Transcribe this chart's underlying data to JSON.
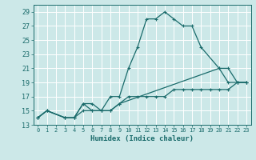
{
  "xlabel": "Humidex (Indice chaleur)",
  "background_color": "#cce8e8",
  "grid_color": "#ffffff",
  "line_color": "#1a6b6b",
  "xlim": [
    -0.5,
    23.5
  ],
  "ylim": [
    13,
    30
  ],
  "xticks": [
    0,
    1,
    2,
    3,
    4,
    5,
    6,
    7,
    8,
    9,
    10,
    11,
    12,
    13,
    14,
    15,
    16,
    17,
    18,
    19,
    20,
    21,
    22,
    23
  ],
  "yticks": [
    13,
    15,
    17,
    19,
    21,
    23,
    25,
    27,
    29
  ],
  "series": [
    {
      "x": [
        0,
        1,
        3,
        4,
        5,
        6,
        7,
        8,
        9,
        10,
        11,
        12,
        13,
        14,
        15,
        16,
        17,
        18,
        20,
        21,
        22,
        23
      ],
      "y": [
        14,
        15,
        14,
        14,
        16,
        16,
        15,
        17,
        17,
        21,
        24,
        28,
        28,
        29,
        28,
        27,
        27,
        24,
        21,
        19,
        19,
        19
      ]
    },
    {
      "x": [
        0,
        1,
        3,
        4,
        5,
        6,
        7,
        8,
        9,
        20,
        21,
        22,
        23
      ],
      "y": [
        14,
        15,
        14,
        14,
        16,
        15,
        15,
        15,
        16,
        21,
        21,
        19,
        19
      ]
    },
    {
      "x": [
        0,
        1,
        3,
        4,
        5,
        6,
        7,
        8,
        9,
        10,
        11,
        12,
        13,
        14,
        15,
        16,
        17,
        18,
        19,
        20,
        21,
        22,
        23
      ],
      "y": [
        14,
        15,
        14,
        14,
        15,
        15,
        15,
        15,
        16,
        17,
        17,
        17,
        17,
        17,
        18,
        18,
        18,
        18,
        18,
        18,
        18,
        19,
        19
      ]
    }
  ]
}
